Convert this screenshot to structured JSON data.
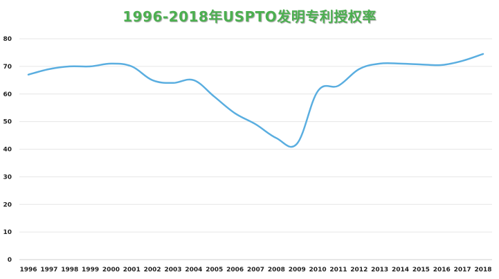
{
  "chart_data": {
    "type": "line",
    "title": "1996-2018年USPTO发明专利授权率",
    "xlabel": "",
    "ylabel": "",
    "ylim": [
      0,
      80
    ],
    "yticks": [
      0,
      10,
      20,
      30,
      40,
      50,
      60,
      70,
      80
    ],
    "grid": true,
    "legend": "none",
    "x": [
      "1996",
      "1997",
      "1998",
      "1999",
      "2000",
      "2001",
      "2002",
      "2003",
      "2004",
      "2005",
      "2006",
      "2007",
      "2008",
      "2009",
      "2010",
      "2011",
      "2012",
      "2013",
      "2014",
      "2015",
      "2016",
      "2017",
      "2018"
    ],
    "series": [
      {
        "values": [
          67,
          69,
          70,
          70,
          71,
          70,
          65,
          64,
          65,
          59,
          53,
          49,
          44,
          42,
          61,
          63,
          69,
          71,
          71,
          70.7,
          70.5,
          72,
          74.5
        ],
        "color": "#5aaee0"
      }
    ],
    "colors": {
      "title": "#4caf50",
      "line": "#5aaee0",
      "grid": "#e6e6e6",
      "axis": "#cfcfcf"
    }
  }
}
